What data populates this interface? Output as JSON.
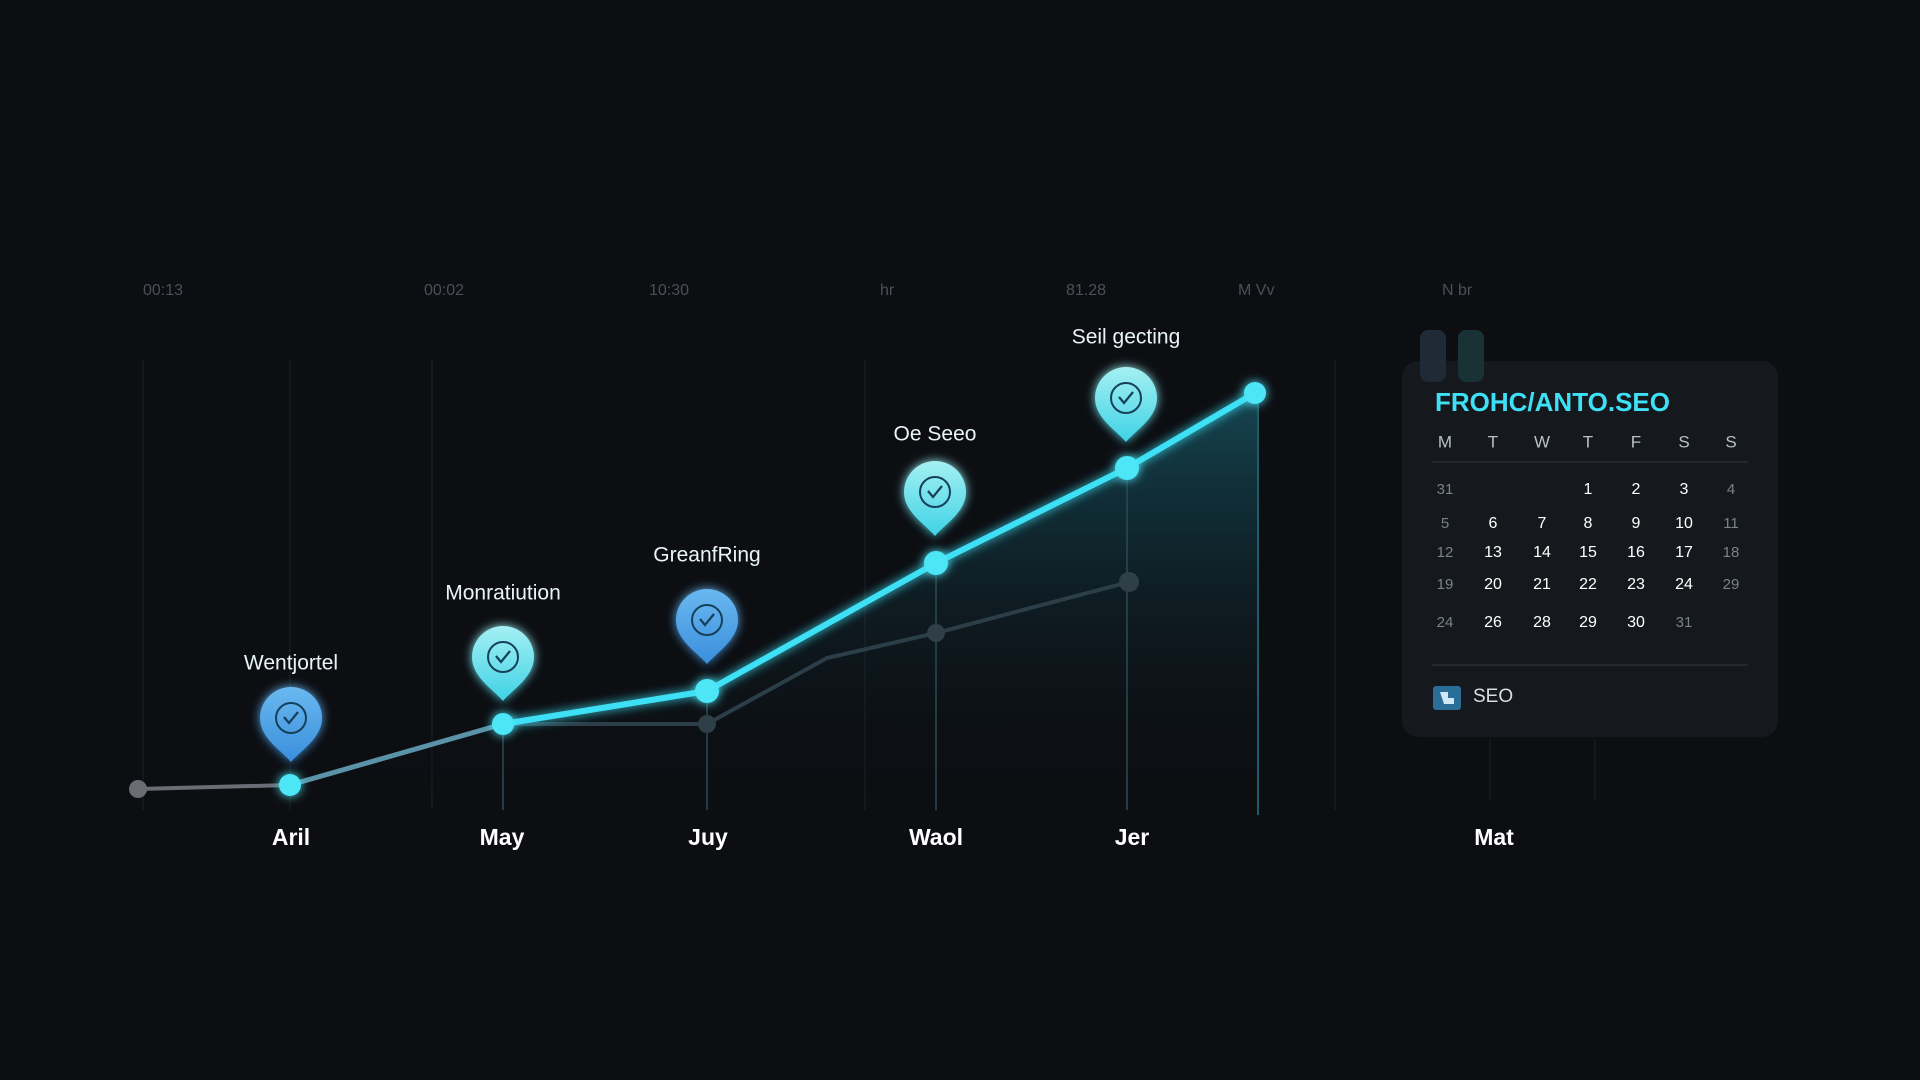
{
  "top_labels": [
    "00:13",
    "00:02",
    "10:30",
    "hr",
    "81.28",
    "M Vv",
    "N br"
  ],
  "milestones": [
    "Wentjortel",
    "Monratiution",
    "GreanfRing",
    "Oe Seeo",
    "Seil gecting"
  ],
  "months": [
    "Aril",
    "May",
    "Juy",
    "Waol",
    "Jer",
    "Mat"
  ],
  "calendar": {
    "title": "FROHC/ANTO.SEO",
    "weekdays": [
      "M",
      "T",
      "W",
      "T",
      "F",
      "S",
      "S"
    ],
    "rows": [
      [
        31,
        null,
        null,
        1,
        2,
        3,
        4
      ],
      [
        5,
        6,
        7,
        8,
        9,
        10,
        11
      ],
      [
        12,
        13,
        14,
        15,
        16,
        17,
        18
      ],
      [
        19,
        20,
        21,
        22,
        23,
        24,
        29
      ],
      [
        24,
        26,
        28,
        29,
        30,
        31,
        null
      ]
    ],
    "footer": "SEO"
  }
}
